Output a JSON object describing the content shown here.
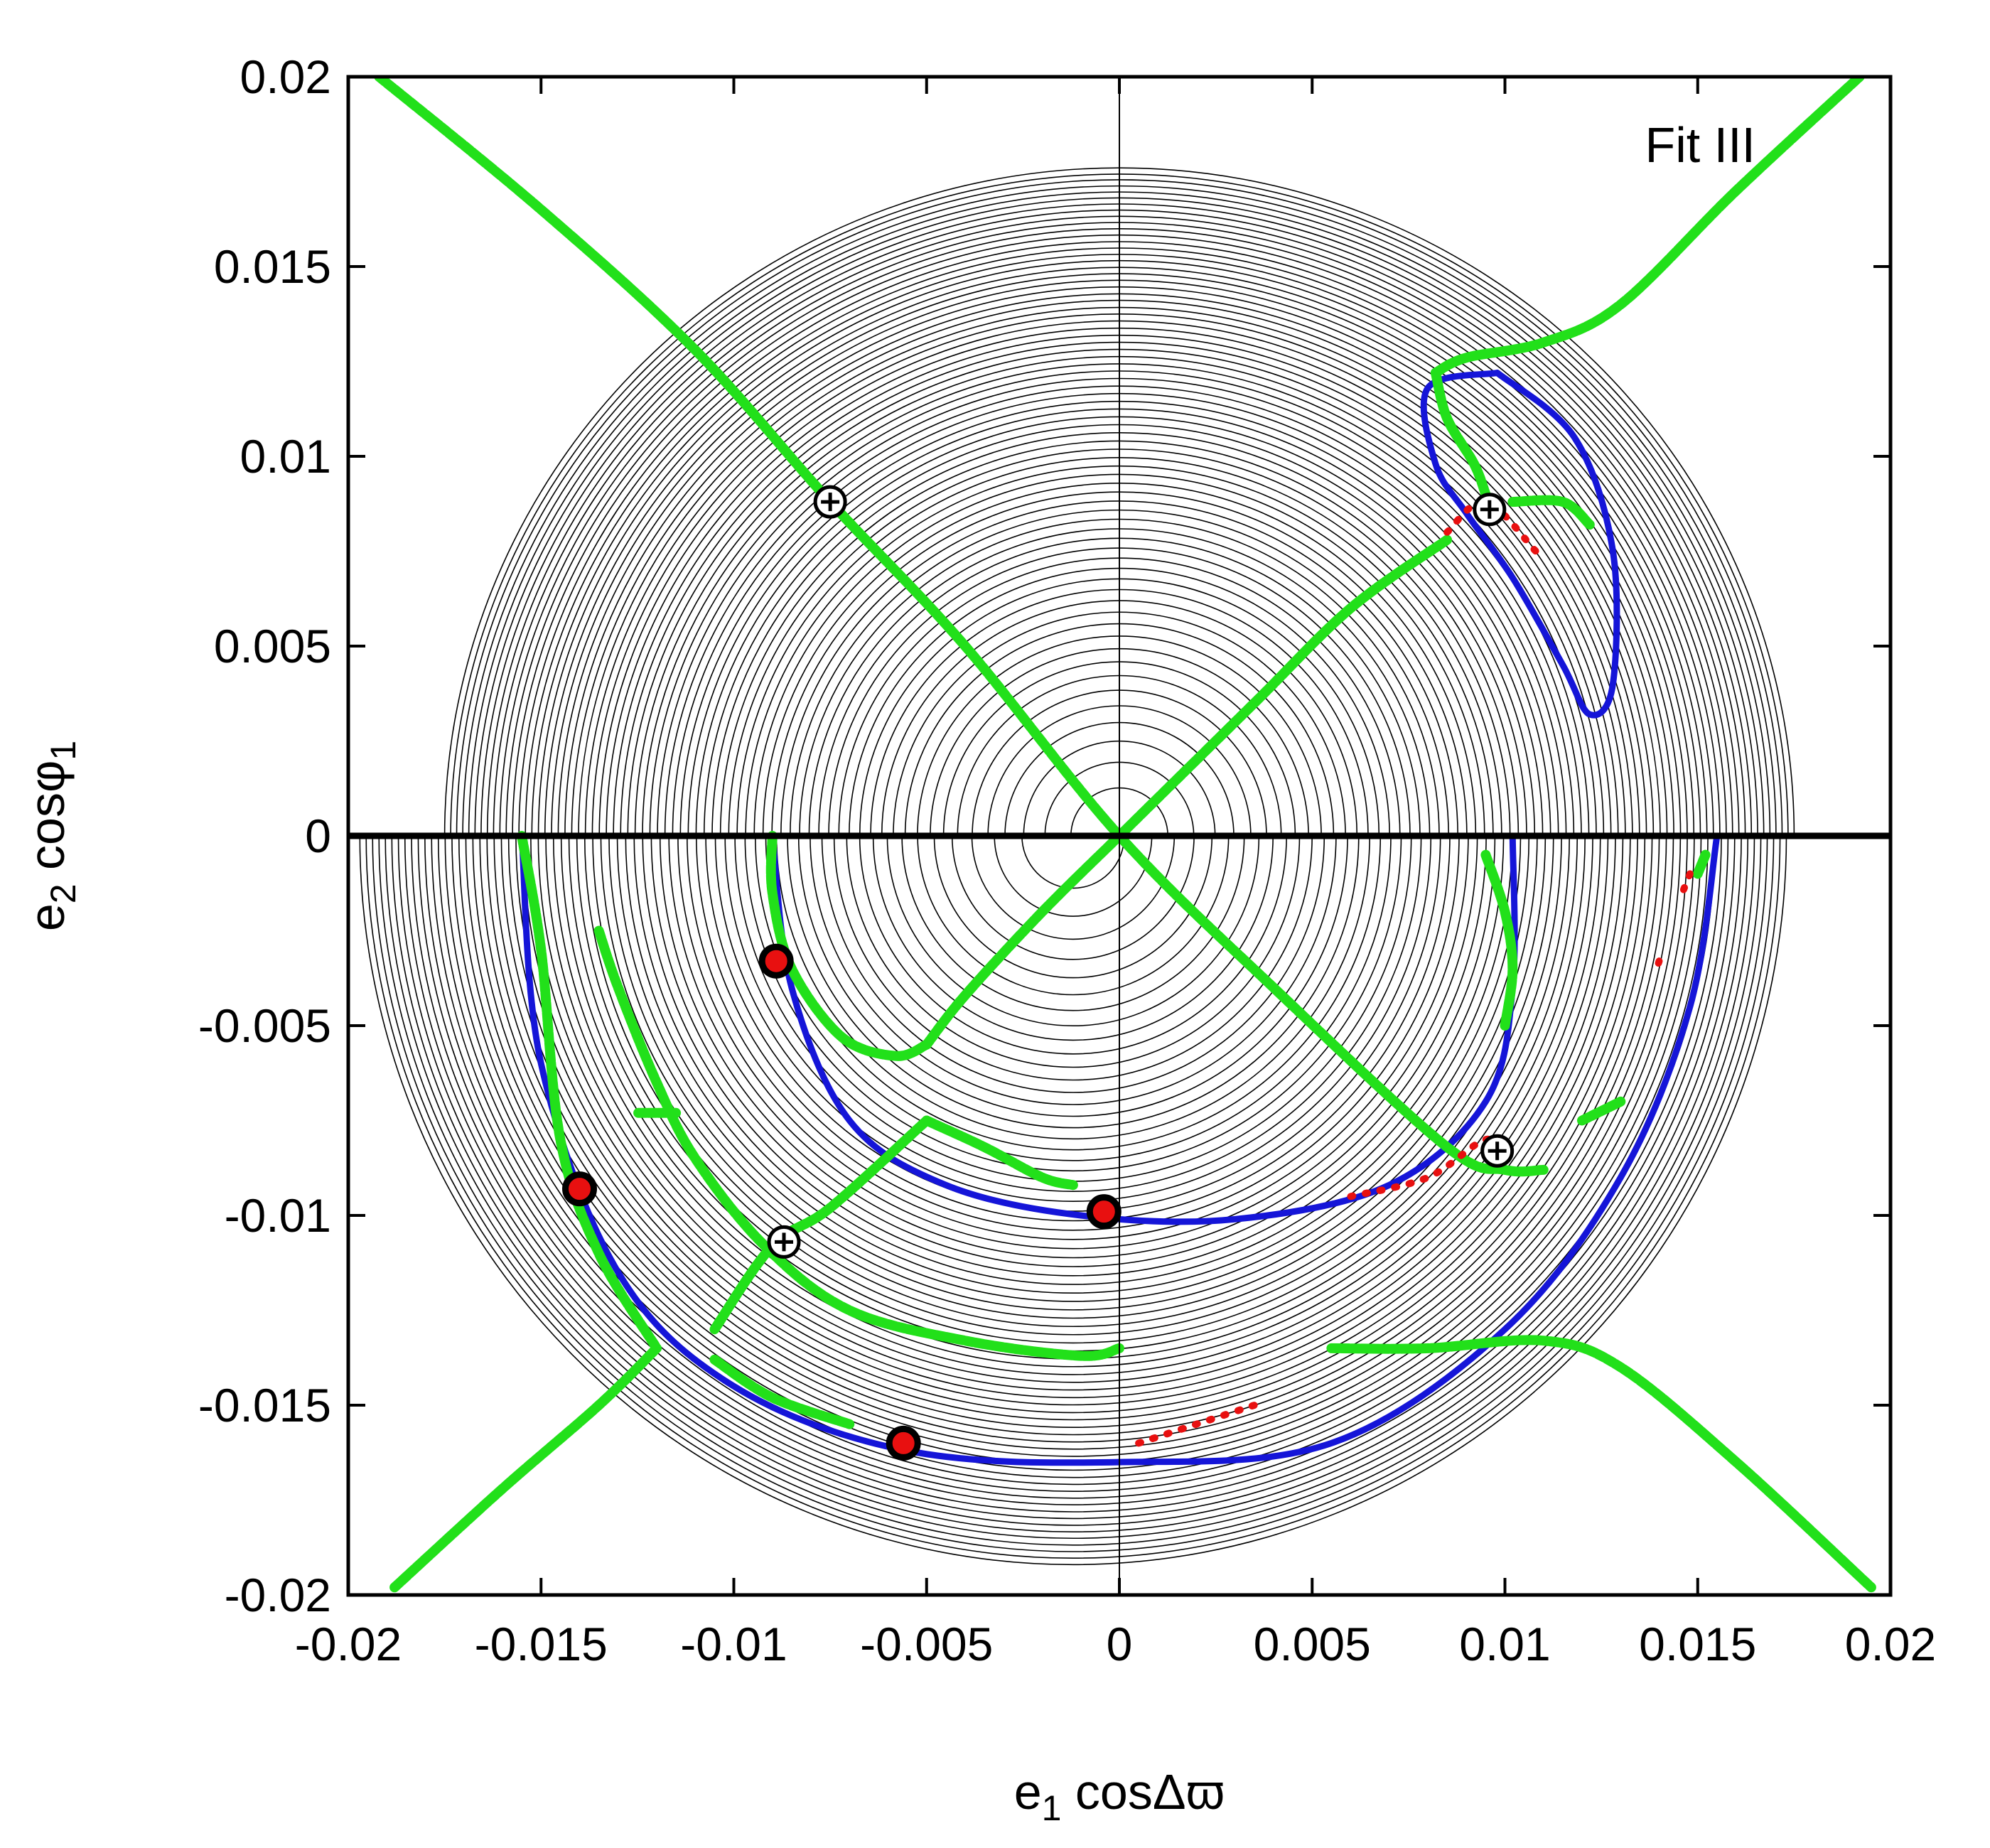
{
  "chart_data": {
    "type": "scatter",
    "title": "",
    "annotation": "Fit III",
    "xlabel": {
      "main": "e",
      "sub": "1",
      "rest": " cosΔϖ"
    },
    "ylabel": {
      "main": "e",
      "sub": "2",
      "rest": " cosφ",
      "sub2": "1"
    },
    "xlim": [
      -0.02,
      0.02
    ],
    "ylim": [
      -0.02,
      0.02
    ],
    "xticks": [
      -0.02,
      -0.015,
      -0.01,
      -0.005,
      0,
      0.005,
      0.01,
      0.015,
      0.02
    ],
    "yticks": [
      -0.02,
      -0.015,
      -0.01,
      -0.005,
      0,
      0.005,
      0.01,
      0.015,
      0.02
    ],
    "xtick_labels": [
      "-0.02",
      "-0.015",
      "-0.01",
      "-0.005",
      "0",
      "0.005",
      "0.01",
      "0.015",
      "0.02"
    ],
    "ytick_labels": [
      "-0.02",
      "-0.015",
      "-0.01",
      "-0.005",
      "0",
      "0.005",
      "0.01",
      "0.015",
      "0.02"
    ],
    "grid": false,
    "colors": {
      "contours": "#000000",
      "green": "#22e01a",
      "blue": "#1515d8",
      "red": "#e81010"
    },
    "domain_boundary": {
      "upper": {
        "x_left": -0.0175,
        "x_right": 0.0175,
        "y_top": 0.0176,
        "center_x": 0.0
      },
      "lower": {
        "x_left": -0.0185,
        "x_right": 0.0185,
        "y_bottom": -0.0192,
        "center_x": -0.0012
      }
    },
    "green_curves": [
      [
        [
          -0.0192,
          0.02
        ],
        [
          -0.015,
          0.0165
        ],
        [
          -0.011,
          0.0128
        ],
        [
          -0.0075,
          0.0088
        ],
        [
          -0.004,
          0.005
        ],
        [
          0.0,
          0.0
        ],
        [
          0.004,
          -0.004
        ],
        [
          0.0085,
          -0.0082
        ],
        [
          0.01,
          -0.0088
        ],
        [
          0.011,
          -0.0088
        ]
      ],
      [
        [
          0.0,
          0.0
        ],
        [
          0.0035,
          0.0035
        ],
        [
          0.006,
          0.006
        ],
        [
          0.0085,
          0.0078
        ]
      ],
      [
        [
          0.0082,
          0.0122
        ],
        [
          0.009,
          0.0126
        ],
        [
          0.011,
          0.013
        ],
        [
          0.013,
          0.014
        ],
        [
          0.016,
          0.017
        ],
        [
          0.0192,
          0.02
        ]
      ],
      [
        [
          0.0082,
          0.0122
        ],
        [
          0.0085,
          0.011
        ],
        [
          0.0092,
          0.0098
        ],
        [
          0.0095,
          0.009
        ]
      ],
      [
        [
          0.0102,
          0.0088
        ],
        [
          0.0115,
          0.0088
        ],
        [
          0.0122,
          0.0082
        ]
      ],
      [
        [
          0.0,
          0.0
        ],
        [
          -0.002,
          -0.002
        ],
        [
          -0.004,
          -0.0042
        ],
        [
          -0.005,
          -0.0055
        ]
      ],
      [
        [
          -0.009,
          0.0
        ],
        [
          -0.009,
          -0.0015
        ],
        [
          -0.0085,
          -0.0035
        ],
        [
          -0.0072,
          -0.0053
        ],
        [
          -0.0058,
          -0.0058
        ],
        [
          -0.005,
          -0.0055
        ]
      ],
      [
        [
          -0.005,
          -0.0075
        ],
        [
          -0.0035,
          -0.0082
        ],
        [
          -0.002,
          -0.009
        ],
        [
          -0.0012,
          -0.0092
        ]
      ],
      [
        [
          -0.005,
          -0.0075
        ],
        [
          -0.0075,
          -0.0098
        ],
        [
          -0.009,
          -0.0108
        ],
        [
          -0.0105,
          -0.013
        ]
      ],
      [
        [
          -0.0135,
          -0.0025
        ],
        [
          -0.013,
          -0.004
        ],
        [
          -0.012,
          -0.0065
        ],
        [
          -0.011,
          -0.0085
        ],
        [
          -0.0092,
          -0.0108
        ],
        [
          -0.007,
          -0.0125
        ],
        [
          -0.004,
          -0.0133
        ],
        [
          -0.001,
          -0.0137
        ],
        [
          0.0,
          -0.0135
        ]
      ],
      [
        [
          -0.0115,
          -0.0073
        ],
        [
          -0.0125,
          -0.0073
        ]
      ],
      [
        [
          -0.0155,
          0.0
        ],
        [
          -0.015,
          -0.003
        ],
        [
          -0.0145,
          -0.008
        ],
        [
          -0.0135,
          -0.011
        ],
        [
          -0.012,
          -0.0135
        ]
      ],
      [
        [
          -0.0188,
          -0.0198
        ],
        [
          -0.016,
          -0.0172
        ],
        [
          -0.0135,
          -0.015
        ],
        [
          -0.012,
          -0.0135
        ]
      ],
      [
        [
          -0.0105,
          -0.0138
        ],
        [
          -0.009,
          -0.0148
        ],
        [
          -0.007,
          -0.0155
        ]
      ],
      [
        [
          0.0095,
          -0.0005
        ],
        [
          0.01,
          -0.002
        ],
        [
          0.0102,
          -0.0035
        ],
        [
          0.01,
          -0.005
        ]
      ],
      [
        [
          0.0055,
          -0.0135
        ],
        [
          0.008,
          -0.0135
        ],
        [
          0.011,
          -0.0133
        ],
        [
          0.013,
          -0.014
        ],
        [
          0.016,
          -0.0165
        ],
        [
          0.0195,
          -0.0198
        ]
      ],
      [
        [
          0.012,
          -0.0075
        ],
        [
          0.013,
          -0.007
        ]
      ],
      [
        [
          0.0152,
          -0.0005
        ],
        [
          0.015,
          -0.001
        ]
      ]
    ],
    "blue_curves": [
      [
        [
          0.0098,
          0.0122
        ],
        [
          0.008,
          0.0118
        ],
        [
          0.0082,
          0.0098
        ],
        [
          0.009,
          0.0085
        ],
        [
          0.0102,
          0.0068
        ],
        [
          0.0115,
          0.0045
        ],
        [
          0.0122,
          0.0032
        ],
        [
          0.0128,
          0.004
        ],
        [
          0.0128,
          0.0075
        ],
        [
          0.0118,
          0.0105
        ],
        [
          0.0098,
          0.0122
        ]
      ],
      [
        [
          -0.009,
          0.0
        ],
        [
          -0.0085,
          -0.004
        ],
        [
          -0.007,
          -0.0075
        ],
        [
          -0.0045,
          -0.0092
        ],
        [
          -0.001,
          -0.01
        ],
        [
          0.003,
          -0.0101
        ],
        [
          0.007,
          -0.0092
        ],
        [
          0.0095,
          -0.007
        ],
        [
          0.0102,
          -0.004
        ],
        [
          0.0102,
          0.0
        ]
      ],
      [
        [
          -0.0155,
          0.0
        ],
        [
          -0.015,
          -0.006
        ],
        [
          -0.013,
          -0.0115
        ],
        [
          -0.01,
          -0.0145
        ],
        [
          -0.0055,
          -0.0162
        ],
        [
          0.0,
          -0.0165
        ],
        [
          0.0055,
          -0.016
        ],
        [
          0.01,
          -0.013
        ],
        [
          0.013,
          -0.009
        ],
        [
          0.0148,
          -0.0045
        ],
        [
          0.0155,
          0.0
        ]
      ]
    ],
    "red_curves": [
      [
        [
          0.0085,
          0.008
        ],
        [
          0.0095,
          0.0088
        ],
        [
          0.0108,
          0.0075
        ]
      ],
      [
        [
          0.006,
          -0.0095
        ],
        [
          0.008,
          -0.009
        ],
        [
          0.0095,
          -0.008
        ],
        [
          0.01,
          -0.0085
        ]
      ],
      [
        [
          0.0005,
          -0.016
        ],
        [
          0.002,
          -0.0155
        ],
        [
          0.0035,
          -0.015
        ]
      ],
      [
        [
          0.0148,
          -0.001
        ],
        [
          0.0146,
          -0.0015
        ]
      ],
      [
        [
          0.014,
          -0.0033
        ],
        [
          0.0139,
          -0.0036
        ]
      ]
    ],
    "saddle_points": [
      {
        "x": -0.0075,
        "y": 0.0088
      },
      {
        "x": 0.0096,
        "y": 0.0086
      },
      {
        "x": 0.0098,
        "y": -0.0083
      },
      {
        "x": -0.0087,
        "y": -0.0107
      }
    ],
    "stable_points": [
      {
        "x": -0.0089,
        "y": -0.0033
      },
      {
        "x": -0.014,
        "y": -0.0093
      },
      {
        "x": -0.0004,
        "y": -0.0099
      },
      {
        "x": -0.0056,
        "y": -0.016
      }
    ]
  }
}
